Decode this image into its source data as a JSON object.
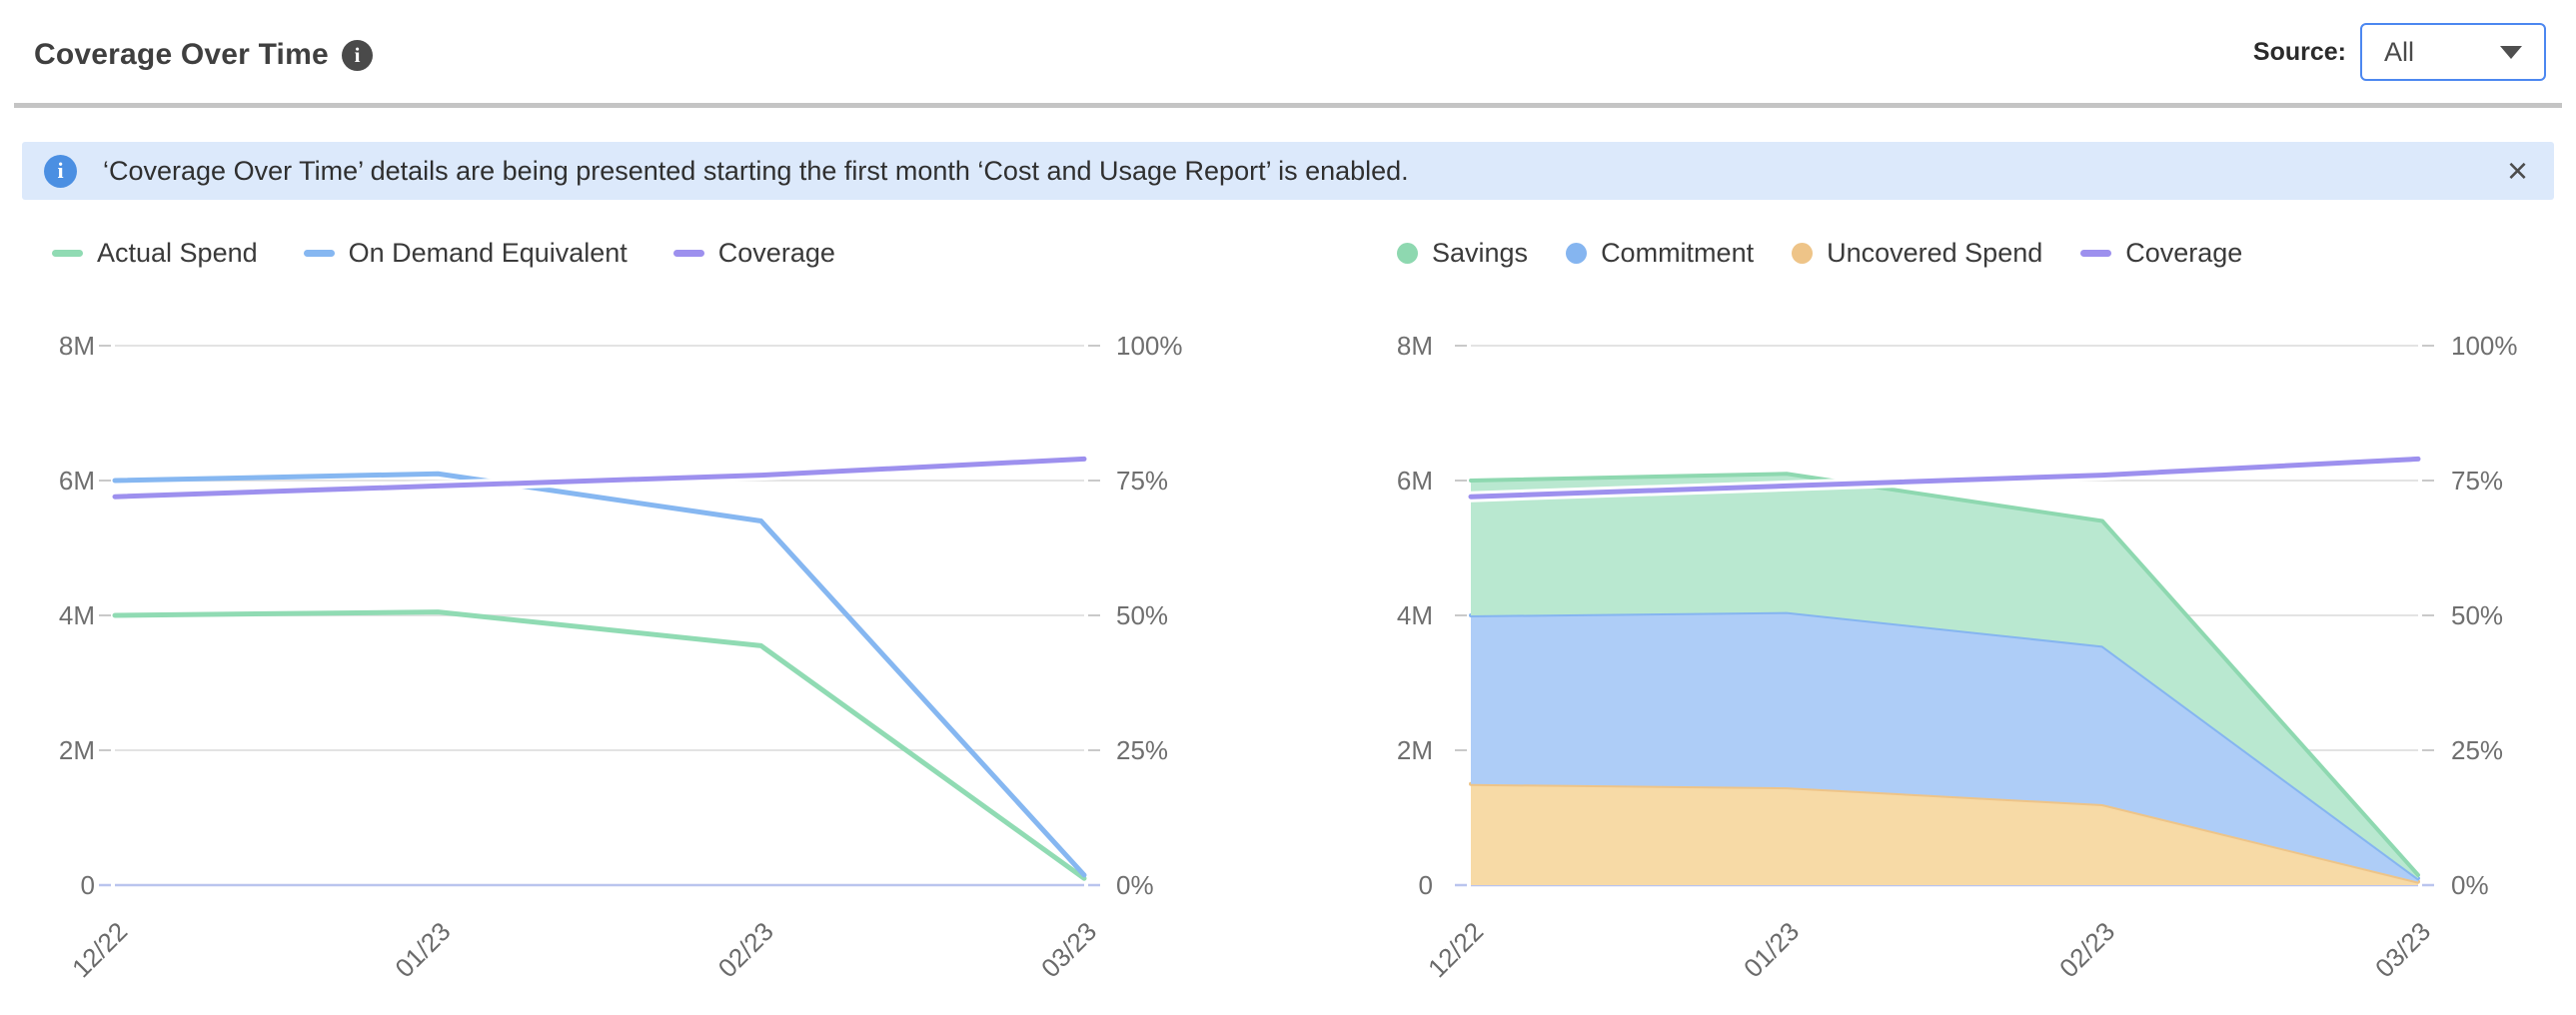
{
  "header": {
    "title": "Coverage Over Time",
    "title_info_icon": "i",
    "source_label": "Source:",
    "source_value": "All",
    "caret_icon": "caret-down"
  },
  "banner": {
    "info_icon": "i",
    "text": "‘Coverage Over Time’ details are being presented starting the first month ‘Cost and Usage Report’ is enabled.",
    "close_icon": "×"
  },
  "colors": {
    "green_line": "#90dbb3",
    "blue_line": "#86b7f1",
    "purple_line": "#9d90ee",
    "green_fill": "#b9e8d0",
    "green_stroke": "#8ed8b0",
    "blue_fill": "#aecdf7",
    "blue_stroke": "#85b5f0",
    "orange_fill": "#f7daa6",
    "orange_stroke": "#eec488",
    "gridline": "#e3e3e3",
    "grid_stub": "#c9c9c9",
    "zero_line": "#bac4ee",
    "banner_bg": "#dce9fb",
    "select_border": "#4c87f0"
  },
  "chart_data": [
    {
      "type": "line",
      "name": "actual-vs-ondemand-chart",
      "x_labels": [
        "12/22",
        "01/23",
        "02/23",
        "03/23"
      ],
      "left_axis": {
        "unit": "M",
        "tick_labels": [
          "0",
          "2M",
          "4M",
          "6M",
          "8M"
        ],
        "ticks": [
          0,
          2,
          4,
          6,
          8
        ],
        "max": 8
      },
      "right_axis": {
        "unit": "%",
        "tick_labels": [
          "0%",
          "25%",
          "50%",
          "75%",
          "100%"
        ],
        "ticks": [
          0,
          25,
          50,
          75,
          100
        ],
        "max": 100
      },
      "grid": true,
      "legend_position": "top-left",
      "legend_swatch": "dash",
      "series": [
        {
          "name": "Actual Spend",
          "kind": "line",
          "axis": "left",
          "color": "#90dbb3",
          "values": [
            4.0,
            4.05,
            3.55,
            0.1
          ]
        },
        {
          "name": "On Demand Equivalent",
          "kind": "line",
          "axis": "left",
          "color": "#86b7f1",
          "values": [
            6.0,
            6.1,
            5.4,
            0.15
          ]
        },
        {
          "name": "Coverage",
          "kind": "line",
          "axis": "right",
          "color": "#9d90ee",
          "halo": true,
          "values": [
            72,
            74,
            76,
            79
          ]
        }
      ]
    },
    {
      "type": "stacked-area",
      "name": "savings-breakdown-chart",
      "x_labels": [
        "12/22",
        "01/23",
        "02/23",
        "03/23"
      ],
      "left_axis": {
        "unit": "M",
        "tick_labels": [
          "0",
          "2M",
          "4M",
          "6M",
          "8M"
        ],
        "ticks": [
          0,
          2,
          4,
          6,
          8
        ],
        "max": 8
      },
      "right_axis": {
        "unit": "%",
        "tick_labels": [
          "0%",
          "25%",
          "50%",
          "75%",
          "100%"
        ],
        "ticks": [
          0,
          25,
          50,
          75,
          100
        ],
        "max": 100
      },
      "grid": true,
      "legend_position": "top-left",
      "legend_swatch": "dot",
      "series": [
        {
          "name": "Savings",
          "kind": "area",
          "stack": 2,
          "fill": "#b9e8d0",
          "stroke": "#8ed8b0",
          "values": [
            2.0,
            2.05,
            1.85,
            0.05
          ]
        },
        {
          "name": "Commitment",
          "kind": "area",
          "stack": 1,
          "fill": "#aecdf7",
          "stroke": "#85b5f0",
          "values": [
            2.5,
            2.6,
            2.35,
            0.05
          ]
        },
        {
          "name": "Uncovered Spend",
          "kind": "area",
          "stack": 0,
          "fill": "#f7daa6",
          "stroke": "#eec488",
          "values": [
            1.5,
            1.45,
            1.2,
            0.05
          ]
        },
        {
          "name": "Coverage",
          "kind": "line",
          "axis": "right",
          "color": "#9d90ee",
          "halo": true,
          "values": [
            72,
            74,
            76,
            79
          ]
        }
      ]
    }
  ]
}
